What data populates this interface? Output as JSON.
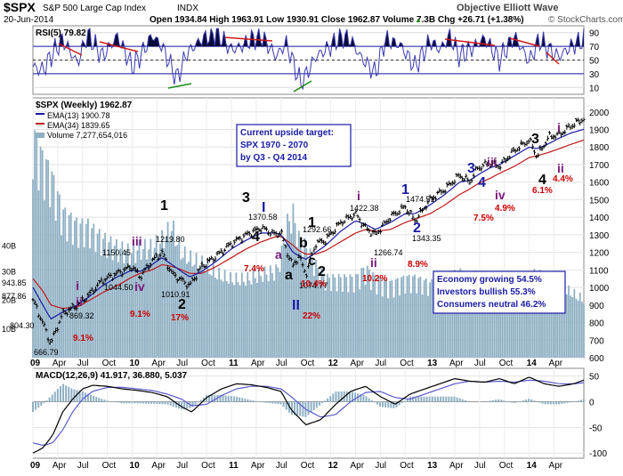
{
  "header": {
    "symbol": "$SPX",
    "name": "S&P 500 Large Cap Index",
    "exchange": "INDX",
    "date": "20-Jun-2014",
    "ohlc": "Open 1934.84  High 1963.91  Low 1930.91  Close 1962.87  Volume 7.3B  Chg +26.71 (+1.38%)",
    "watermark": "Objective Elliott Wave",
    "credit": "© StockCharts.com",
    "arrow_glyph": "▲"
  },
  "colors": {
    "price": "#000000",
    "ema13": "#1a1aa6",
    "ema34": "#c01818",
    "volume": "#8fb0c4",
    "rsi": "#3a3ab0",
    "macd_hist": "#8fb0c4",
    "up_trend": "#1a8a1a",
    "down_trend": "#d01818",
    "box_border": "#1a1aa6",
    "label_red": "#cc0000",
    "label_purple": "#7a1a7a",
    "label_blue": "#1a1aa6"
  },
  "chart_data": [
    {
      "panel": "rsi",
      "type": "line",
      "title": "RSI(5) 79.82",
      "y_ticks": [
        10,
        30,
        50,
        70,
        90
      ],
      "ylim": [
        0,
        100
      ],
      "overbought": 70,
      "oversold": 30,
      "midline": 50,
      "x_start": 2009.0,
      "x_end": 2014.55,
      "x": [
        2009.0,
        2009.1,
        2009.2,
        2009.3,
        2009.45,
        2009.55,
        2009.7,
        2009.85,
        2010.0,
        2010.1,
        2010.2,
        2010.3,
        2010.45,
        2010.55,
        2010.7,
        2010.85,
        2011.0,
        2011.1,
        2011.2,
        2011.3,
        2011.45,
        2011.55,
        2011.7,
        2011.85,
        2012.0,
        2012.1,
        2012.2,
        2012.3,
        2012.45,
        2012.55,
        2012.7,
        2012.85,
        2013.0,
        2013.1,
        2013.2,
        2013.3,
        2013.45,
        2013.55,
        2013.7,
        2013.85,
        2014.0,
        2014.1,
        2014.2,
        2014.3,
        2014.42,
        2014.55
      ],
      "values": [
        40,
        35,
        60,
        80,
        45,
        88,
        55,
        85,
        40,
        60,
        86,
        70,
        22,
        60,
        80,
        90,
        65,
        70,
        80,
        85,
        55,
        75,
        15,
        55,
        70,
        85,
        80,
        55,
        30,
        80,
        72,
        40,
        78,
        65,
        85,
        55,
        70,
        82,
        50,
        85,
        48,
        80,
        65,
        55,
        70,
        80
      ]
    },
    {
      "panel": "price",
      "type": "line",
      "title": "$SPX (Weekly) 1962.87",
      "y_ticks": [
        600,
        700,
        800,
        900,
        1000,
        1100,
        1200,
        1300,
        1400,
        1500,
        1600,
        1700,
        1800,
        1900,
        2000
      ],
      "ylim": [
        600,
        2080
      ],
      "x_labels": [
        "09",
        "Apr",
        "Jul",
        "Oct",
        "10",
        "Apr",
        "Jul",
        "Oct",
        "11",
        "Apr",
        "Jul",
        "Oct",
        "12",
        "Apr",
        "Jul",
        "Oct",
        "13",
        "Apr",
        "Jul",
        "Oct",
        "14",
        "Apr"
      ],
      "x_label_pos": [
        2009.0,
        2009.25,
        2009.5,
        2009.75,
        2010.0,
        2010.25,
        2010.5,
        2010.75,
        2011.0,
        2011.25,
        2011.5,
        2011.75,
        2012.0,
        2012.25,
        2012.5,
        2012.75,
        2013.0,
        2013.25,
        2013.5,
        2013.75,
        2014.0,
        2014.25
      ],
      "x_start": 2009.0,
      "x_end": 2014.55,
      "series": [
        {
          "name": "EMA(13) 1900.78",
          "key": "ema13"
        },
        {
          "name": "EMA(34) 1839.65",
          "key": "ema34"
        },
        {
          "name": "Volume 7,277,654,016",
          "key": "volume"
        }
      ],
      "price_x": [
        2009.0,
        2009.1,
        2009.18,
        2009.3,
        2009.45,
        2009.55,
        2009.7,
        2009.85,
        2010.0,
        2010.08,
        2010.2,
        2010.3,
        2010.4,
        2010.5,
        2010.58,
        2010.7,
        2010.85,
        2011.0,
        2011.15,
        2011.3,
        2011.45,
        2011.5,
        2011.55,
        2011.62,
        2011.68,
        2011.75,
        2011.85,
        2011.95,
        2012.1,
        2012.25,
        2012.35,
        2012.45,
        2012.6,
        2012.75,
        2012.85,
        2013.0,
        2013.15,
        2013.3,
        2013.4,
        2013.48,
        2013.6,
        2013.7,
        2013.85,
        2014.0,
        2014.08,
        2014.2,
        2014.3,
        2014.42,
        2014.55
      ],
      "price_y": [
        930,
        800,
        680,
        850,
        900,
        950,
        1040,
        1080,
        1120,
        1060,
        1150,
        1200,
        1080,
        1040,
        1010,
        1120,
        1180,
        1250,
        1300,
        1340,
        1300,
        1320,
        1220,
        1120,
        1180,
        1075,
        1250,
        1270,
        1370,
        1420,
        1340,
        1300,
        1400,
        1460,
        1380,
        1500,
        1560,
        1640,
        1600,
        1680,
        1710,
        1690,
        1780,
        1840,
        1745,
        1860,
        1870,
        1920,
        1963
      ],
      "ema13": [
        1000,
        900,
        820,
        860,
        900,
        940,
        1010,
        1060,
        1100,
        1090,
        1130,
        1170,
        1130,
        1090,
        1060,
        1090,
        1150,
        1220,
        1270,
        1310,
        1310,
        1300,
        1260,
        1200,
        1180,
        1160,
        1200,
        1240,
        1320,
        1380,
        1360,
        1330,
        1370,
        1420,
        1420,
        1470,
        1530,
        1600,
        1610,
        1640,
        1680,
        1700,
        1750,
        1800,
        1790,
        1820,
        1850,
        1880,
        1901
      ],
      "ema34": [
        1050,
        980,
        900,
        880,
        890,
        920,
        970,
        1010,
        1060,
        1080,
        1100,
        1130,
        1120,
        1100,
        1080,
        1080,
        1120,
        1170,
        1220,
        1260,
        1290,
        1290,
        1270,
        1240,
        1210,
        1190,
        1190,
        1210,
        1260,
        1310,
        1330,
        1320,
        1330,
        1370,
        1390,
        1420,
        1470,
        1530,
        1560,
        1590,
        1620,
        1650,
        1690,
        1740,
        1750,
        1770,
        1790,
        1815,
        1840
      ],
      "volume_rel": [
        0.85,
        0.75,
        0.7,
        0.55,
        0.5,
        0.5,
        0.45,
        0.42,
        0.4,
        0.42,
        0.42,
        0.45,
        0.5,
        0.4,
        0.38,
        0.36,
        0.32,
        0.3,
        0.3,
        0.32,
        0.33,
        0.38,
        0.5,
        0.55,
        0.45,
        0.42,
        0.35,
        0.3,
        0.3,
        0.3,
        0.34,
        0.3,
        0.28,
        0.3,
        0.3,
        0.28,
        0.3,
        0.32,
        0.3,
        0.3,
        0.28,
        0.3,
        0.28,
        0.3,
        0.32,
        0.28,
        0.27,
        0.25,
        0.22
      ],
      "volume_axis_labels": [
        "40B",
        "30B",
        "20B",
        "10B"
      ],
      "volume_axis_rel": [
        0.42,
        0.32,
        0.21,
        0.1
      ],
      "annotations": {
        "values": [
          "943.85",
          "877.86",
          "804.30",
          "869.32",
          "666.79",
          "1150.45",
          "1219.80",
          "1044.50",
          "1010.91",
          "1370.58",
          "1292.66",
          "1074.77",
          "1422.38",
          "1266.74",
          "1474.51",
          "1343.35"
        ],
        "waves_black": [
          "1",
          "2",
          "3",
          "4",
          "a",
          "b",
          "c",
          "1",
          "2",
          "3",
          "4"
        ],
        "waves_blue": [
          "I",
          "II",
          "3",
          "4",
          "2",
          "1"
        ],
        "waves_roman": [
          "i",
          "ii",
          "iii",
          "iv",
          "iii",
          "iv",
          "i",
          "ii",
          "i",
          "ii",
          "a"
        ],
        "pct": [
          "9.1%",
          "9.1%",
          "17%",
          "7.4%",
          "10.4%",
          "22%",
          "10.2%",
          "8.9%",
          "7.5%",
          "4.9%",
          "6.1%",
          "4.4%"
        ]
      },
      "boxes": [
        {
          "title": "Current upside target:",
          "lines": [
            "SPX 1970 - 2070",
            "by Q3 - Q4 2014"
          ]
        },
        {
          "title": "",
          "lines": [
            "Economy growing 54.5%",
            "Investors bullish 55.3%",
            "Consumers neutral 46.2%"
          ]
        }
      ]
    },
    {
      "panel": "macd",
      "type": "line",
      "title": "MACD(12,26,9) 41.917, 36.880, 5.037",
      "y_ticks": [
        50,
        0,
        -50,
        -100
      ],
      "ylim": [
        -110,
        65
      ],
      "x_start": 2009.0,
      "x_end": 2014.55,
      "x": [
        2009.0,
        2009.1,
        2009.2,
        2009.3,
        2009.4,
        2009.5,
        2009.6,
        2009.75,
        2009.9,
        2010.05,
        2010.2,
        2010.35,
        2010.5,
        2010.6,
        2010.75,
        2010.9,
        2011.05,
        2011.2,
        2011.35,
        2011.5,
        2011.6,
        2011.75,
        2011.9,
        2012.05,
        2012.2,
        2012.35,
        2012.5,
        2012.65,
        2012.8,
        2012.95,
        2013.1,
        2013.25,
        2013.4,
        2013.55,
        2013.7,
        2013.85,
        2014.0,
        2014.15,
        2014.3,
        2014.45,
        2014.55
      ],
      "macd": [
        -100,
        -90,
        -65,
        -20,
        5,
        25,
        32,
        30,
        25,
        22,
        18,
        10,
        -10,
        -20,
        8,
        25,
        35,
        33,
        28,
        20,
        -15,
        -45,
        -35,
        -5,
        20,
        30,
        10,
        -5,
        15,
        25,
        35,
        45,
        40,
        38,
        45,
        35,
        48,
        35,
        30,
        35,
        42
      ],
      "signal": [
        -80,
        -85,
        -80,
        -55,
        -20,
        5,
        20,
        28,
        28,
        25,
        22,
        15,
        5,
        -8,
        -5,
        12,
        25,
        30,
        30,
        25,
        10,
        -15,
        -30,
        -25,
        0,
        18,
        20,
        8,
        5,
        15,
        25,
        35,
        40,
        38,
        40,
        38,
        42,
        40,
        35,
        35,
        37
      ]
    }
  ]
}
